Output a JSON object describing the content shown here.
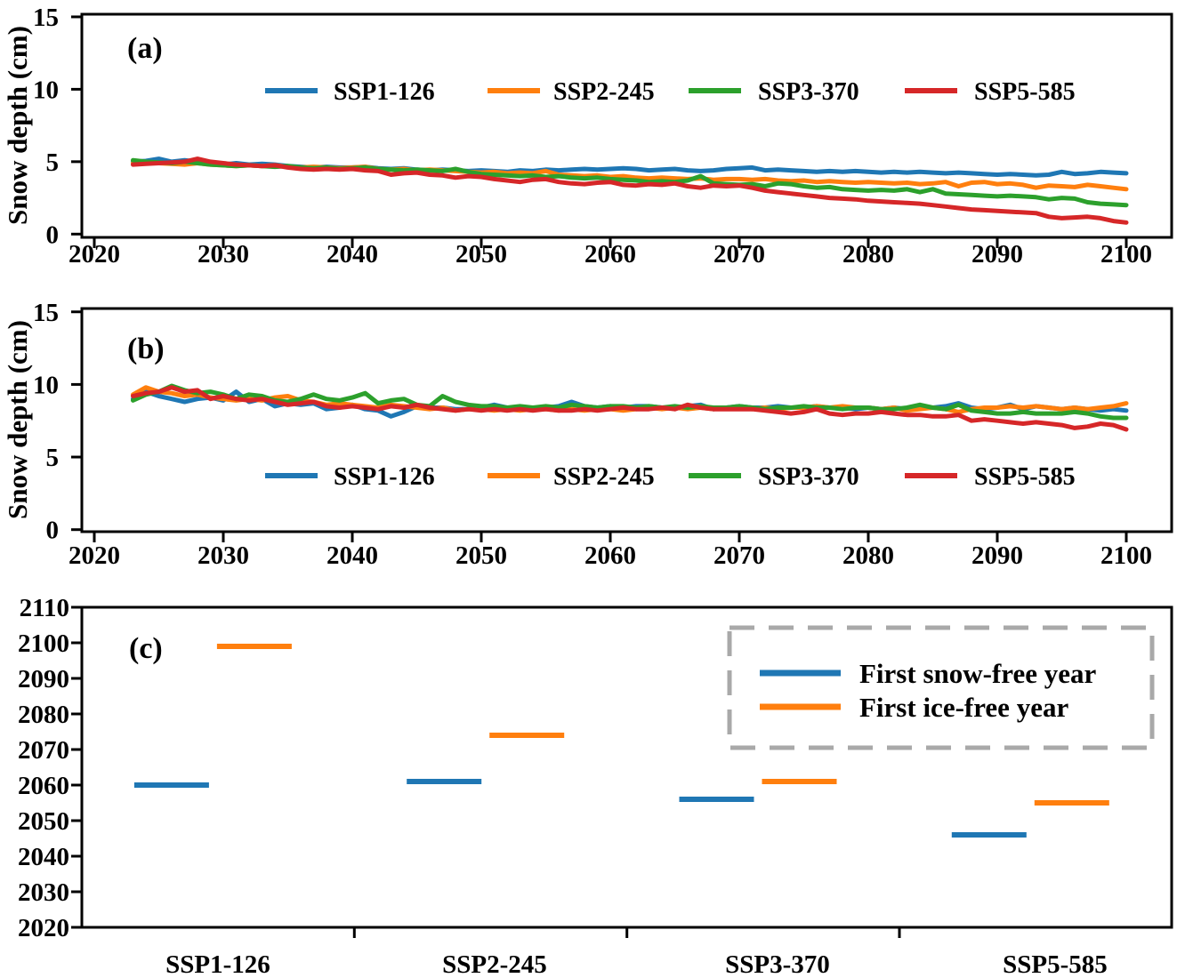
{
  "figure": {
    "background": "#ffffff",
    "frame_color": "#000000",
    "legend_border_color": "#a9a9a9"
  },
  "chart_data": [
    {
      "panel_label": "(a)",
      "type": "line",
      "title": "",
      "xlabel": "",
      "ylabel": "Snow depth (cm)",
      "ylim": [
        0,
        15
      ],
      "yticks": [
        0,
        5,
        10,
        15
      ],
      "xlim": [
        2019,
        2103.5
      ],
      "xticks": [
        2020,
        2030,
        2040,
        2050,
        2060,
        2070,
        2080,
        2090,
        2100
      ],
      "x_start": 2023,
      "x_step": 1,
      "grid": false,
      "legend_position": "upper-center-row",
      "series": [
        {
          "name": "SSP1-126",
          "color": "#1f77b4",
          "values": [
            5.0,
            5.05,
            5.2,
            5.0,
            5.1,
            5.0,
            4.9,
            4.8,
            4.9,
            4.8,
            4.85,
            4.8,
            4.7,
            4.65,
            4.6,
            4.65,
            4.6,
            4.6,
            4.65,
            4.55,
            4.5,
            4.55,
            4.45,
            4.4,
            4.45,
            4.4,
            4.35,
            4.4,
            4.35,
            4.3,
            4.4,
            4.35,
            4.45,
            4.4,
            4.45,
            4.5,
            4.45,
            4.5,
            4.55,
            4.5,
            4.4,
            4.45,
            4.5,
            4.4,
            4.35,
            4.4,
            4.5,
            4.55,
            4.6,
            4.4,
            4.45,
            4.4,
            4.35,
            4.3,
            4.35,
            4.3,
            4.35,
            4.3,
            4.25,
            4.3,
            4.25,
            4.3,
            4.25,
            4.2,
            4.25,
            4.2,
            4.15,
            4.1,
            4.15,
            4.1,
            4.05,
            4.1,
            4.3,
            4.15,
            4.2,
            4.3,
            4.25,
            4.2
          ]
        },
        {
          "name": "SSP2-245",
          "color": "#ff7f0e",
          "values": [
            4.9,
            4.95,
            4.9,
            4.85,
            4.8,
            4.9,
            4.8,
            4.75,
            4.7,
            4.75,
            4.7,
            4.75,
            4.65,
            4.6,
            4.65,
            4.6,
            4.55,
            4.6,
            4.65,
            4.5,
            4.45,
            4.5,
            4.4,
            4.45,
            4.4,
            4.35,
            4.3,
            4.25,
            4.3,
            4.2,
            4.25,
            4.2,
            4.35,
            4.1,
            4.05,
            4.0,
            4.05,
            3.95,
            4.0,
            3.9,
            3.85,
            3.9,
            3.85,
            3.8,
            3.85,
            3.75,
            3.8,
            3.8,
            3.75,
            3.8,
            3.7,
            3.65,
            3.7,
            3.6,
            3.65,
            3.6,
            3.55,
            3.6,
            3.55,
            3.5,
            3.55,
            3.45,
            3.5,
            3.6,
            3.3,
            3.55,
            3.6,
            3.45,
            3.5,
            3.4,
            3.2,
            3.35,
            3.3,
            3.25,
            3.4,
            3.3,
            3.2,
            3.1
          ]
        },
        {
          "name": "SSP3-370",
          "color": "#2ca02c",
          "values": [
            5.1,
            5.0,
            4.95,
            4.9,
            5.0,
            4.9,
            4.8,
            4.75,
            4.7,
            4.75,
            4.7,
            4.65,
            4.7,
            4.6,
            4.55,
            4.6,
            4.5,
            4.55,
            4.6,
            4.5,
            4.45,
            4.4,
            4.45,
            4.4,
            4.35,
            4.5,
            4.3,
            4.15,
            4.1,
            4.05,
            4.0,
            4.05,
            3.95,
            4.0,
            3.9,
            3.85,
            3.9,
            3.8,
            3.75,
            3.7,
            3.6,
            3.65,
            3.6,
            3.7,
            4.0,
            3.5,
            3.45,
            3.4,
            3.45,
            3.3,
            3.5,
            3.45,
            3.3,
            3.2,
            3.25,
            3.1,
            3.05,
            3.0,
            3.05,
            3.0,
            3.1,
            2.9,
            3.1,
            2.8,
            2.75,
            2.7,
            2.65,
            2.6,
            2.65,
            2.6,
            2.55,
            2.4,
            2.5,
            2.45,
            2.2,
            2.1,
            2.05,
            2.0
          ]
        },
        {
          "name": "SSP5-585",
          "color": "#d62728",
          "values": [
            4.8,
            4.85,
            4.9,
            4.95,
            5.0,
            5.2,
            5.0,
            4.9,
            4.8,
            4.75,
            4.7,
            4.75,
            4.6,
            4.5,
            4.45,
            4.5,
            4.45,
            4.5,
            4.4,
            4.35,
            4.1,
            4.2,
            4.25,
            4.1,
            4.05,
            3.9,
            4.0,
            3.95,
            3.8,
            3.7,
            3.6,
            3.75,
            3.8,
            3.6,
            3.5,
            3.45,
            3.55,
            3.6,
            3.4,
            3.35,
            3.45,
            3.4,
            3.5,
            3.3,
            3.2,
            3.35,
            3.3,
            3.35,
            3.2,
            3.0,
            2.9,
            2.8,
            2.7,
            2.6,
            2.5,
            2.45,
            2.4,
            2.3,
            2.25,
            2.2,
            2.15,
            2.1,
            2.0,
            1.9,
            1.8,
            1.7,
            1.65,
            1.6,
            1.55,
            1.5,
            1.45,
            1.2,
            1.1,
            1.15,
            1.2,
            1.1,
            0.9,
            0.8
          ]
        }
      ]
    },
    {
      "panel_label": "(b)",
      "type": "line",
      "title": "",
      "xlabel": "",
      "ylabel": "Snow depth (cm)",
      "ylim": [
        0,
        15
      ],
      "yticks": [
        0,
        5,
        10,
        15
      ],
      "xlim": [
        2019,
        2103.5
      ],
      "xticks": [
        2020,
        2030,
        2040,
        2050,
        2060,
        2070,
        2080,
        2090,
        2100
      ],
      "x_start": 2023,
      "x_step": 1,
      "grid": false,
      "legend_position": "lower-center-row",
      "series": [
        {
          "name": "SSP1-126",
          "color": "#1f77b4",
          "values": [
            9.0,
            9.5,
            9.2,
            9.0,
            8.8,
            9.0,
            9.1,
            8.9,
            9.5,
            8.8,
            9.0,
            8.5,
            8.7,
            8.6,
            8.7,
            8.3,
            8.4,
            8.6,
            8.3,
            8.2,
            7.8,
            8.1,
            8.5,
            8.4,
            8.4,
            8.3,
            8.3,
            8.4,
            8.6,
            8.4,
            8.3,
            8.4,
            8.4,
            8.5,
            8.8,
            8.5,
            8.4,
            8.5,
            8.4,
            8.5,
            8.5,
            8.4,
            8.4,
            8.5,
            8.6,
            8.3,
            8.4,
            8.5,
            8.4,
            8.4,
            8.5,
            8.4,
            8.4,
            8.5,
            8.4,
            8.4,
            8.3,
            8.4,
            8.3,
            8.4,
            8.3,
            8.4,
            8.4,
            8.5,
            8.7,
            8.4,
            8.3,
            8.4,
            8.6,
            8.3,
            8.5,
            8.4,
            8.3,
            8.4,
            8.3,
            8.2,
            8.3,
            8.2
          ]
        },
        {
          "name": "SSP2-245",
          "color": "#ff7f0e",
          "values": [
            9.3,
            9.8,
            9.5,
            9.4,
            9.2,
            9.3,
            9.1,
            9.0,
            8.9,
            9.0,
            8.9,
            9.1,
            9.2,
            8.9,
            8.8,
            8.6,
            8.7,
            8.6,
            8.5,
            8.4,
            8.6,
            8.5,
            8.4,
            8.3,
            8.4,
            8.2,
            8.3,
            8.3,
            8.2,
            8.3,
            8.2,
            8.3,
            8.3,
            8.2,
            8.3,
            8.2,
            8.3,
            8.3,
            8.2,
            8.3,
            8.4,
            8.3,
            8.4,
            8.3,
            8.4,
            8.3,
            8.4,
            8.4,
            8.3,
            8.4,
            8.3,
            8.4,
            8.4,
            8.5,
            8.4,
            8.5,
            8.4,
            8.4,
            8.3,
            8.4,
            8.2,
            8.3,
            8.4,
            8.3,
            8.1,
            8.3,
            8.4,
            8.4,
            8.5,
            8.4,
            8.5,
            8.4,
            8.3,
            8.4,
            8.3,
            8.4,
            8.5,
            8.7
          ]
        },
        {
          "name": "SSP3-370",
          "color": "#2ca02c",
          "values": [
            8.9,
            9.3,
            9.5,
            9.9,
            9.6,
            9.4,
            9.5,
            9.3,
            9.0,
            9.3,
            9.2,
            8.9,
            8.8,
            9.0,
            9.3,
            9.0,
            8.9,
            9.1,
            9.4,
            8.7,
            8.9,
            9.0,
            8.6,
            8.5,
            9.2,
            8.8,
            8.6,
            8.5,
            8.5,
            8.4,
            8.5,
            8.4,
            8.5,
            8.4,
            8.6,
            8.5,
            8.4,
            8.5,
            8.5,
            8.4,
            8.5,
            8.4,
            8.5,
            8.4,
            8.5,
            8.4,
            8.4,
            8.5,
            8.4,
            8.3,
            8.4,
            8.4,
            8.5,
            8.4,
            8.4,
            8.3,
            8.4,
            8.4,
            8.3,
            8.3,
            8.4,
            8.6,
            8.4,
            8.3,
            8.6,
            8.2,
            8.1,
            8.0,
            8.0,
            8.1,
            8.0,
            8.0,
            8.0,
            8.1,
            8.0,
            7.8,
            7.7,
            7.7
          ]
        },
        {
          "name": "SSP5-585",
          "color": "#d62728",
          "values": [
            9.2,
            9.4,
            9.5,
            9.8,
            9.5,
            9.6,
            9.0,
            9.2,
            9.0,
            8.9,
            9.0,
            8.8,
            8.6,
            8.7,
            8.8,
            8.5,
            8.4,
            8.5,
            8.4,
            8.3,
            8.5,
            8.4,
            8.6,
            8.4,
            8.3,
            8.2,
            8.3,
            8.2,
            8.3,
            8.2,
            8.3,
            8.2,
            8.3,
            8.2,
            8.2,
            8.3,
            8.2,
            8.3,
            8.4,
            8.3,
            8.3,
            8.4,
            8.3,
            8.6,
            8.4,
            8.3,
            8.3,
            8.3,
            8.3,
            8.2,
            8.1,
            8.0,
            8.1,
            8.3,
            8.0,
            7.9,
            8.0,
            8.0,
            8.1,
            8.0,
            7.9,
            7.9,
            7.8,
            7.8,
            7.9,
            7.5,
            7.6,
            7.5,
            7.4,
            7.3,
            7.4,
            7.3,
            7.2,
            7.0,
            7.1,
            7.3,
            7.2,
            6.9
          ]
        }
      ]
    },
    {
      "panel_label": "(c)",
      "type": "categorical-marks",
      "title": "",
      "xlabel": "",
      "ylabel": "",
      "ylim": [
        2020,
        2110
      ],
      "yticks": [
        2020,
        2030,
        2040,
        2050,
        2060,
        2070,
        2080,
        2090,
        2100,
        2110
      ],
      "categories": [
        "SSP1-126",
        "SSP2-245",
        "SSP3-370",
        "SSP5-585"
      ],
      "grid": false,
      "legend_position": "upper-right-dashed-box",
      "series": [
        {
          "name": "First snow-free year",
          "color": "#1f77b4",
          "values": [
            2060,
            2061,
            2056,
            2046
          ]
        },
        {
          "name": "First ice-free year",
          "color": "#ff7f0e",
          "values": [
            2099,
            2074,
            2061,
            2055
          ]
        }
      ]
    }
  ]
}
